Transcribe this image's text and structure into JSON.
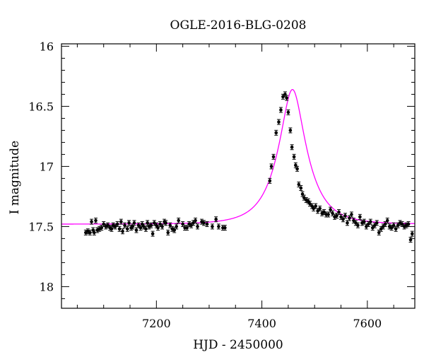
{
  "chart_data": {
    "type": "scatter",
    "title": "OGLE-2016-BLG-0208",
    "xlabel": "HJD - 2450000",
    "ylabel": "I magnitude",
    "xlim": [
      7020,
      7690
    ],
    "ylim": [
      18.18,
      15.98
    ],
    "y_inverted": true,
    "x_major_ticks": [
      7200,
      7400,
      7600
    ],
    "y_major_ticks": [
      16,
      16.5,
      17,
      17.5,
      18
    ],
    "y_tick_labels": [
      "16",
      "16.5",
      "17",
      "17.5",
      "18"
    ],
    "x_tick_labels": [
      "7200",
      "7400",
      "7600"
    ],
    "grid": false,
    "colors": {
      "model": "#ff00ff",
      "points": "#000000"
    },
    "series": [
      {
        "type": "scatter",
        "x": [
          7066,
          7070,
          7074,
          7077,
          7080,
          7082,
          7085,
          7088,
          7092,
          7096,
          7100,
          7104,
          7108,
          7112,
          7115,
          7118,
          7122,
          7126,
          7130,
          7133,
          7136,
          7140,
          7145,
          7148,
          7152,
          7155,
          7158,
          7162,
          7166,
          7170,
          7173,
          7176,
          7180,
          7183,
          7186,
          7190,
          7193,
          7196,
          7200,
          7203,
          7207,
          7211,
          7215,
          7218,
          7222,
          7226,
          7230,
          7234,
          7238,
          7242,
          7250,
          7254,
          7258,
          7262,
          7266,
          7270,
          7274,
          7278,
          7286,
          7290,
          7296,
          7306,
          7313,
          7318,
          7326,
          7330,
          7415,
          7418,
          7422,
          7427,
          7432,
          7436,
          7440,
          7444,
          7447,
          7450,
          7454,
          7457,
          7461,
          7464,
          7467,
          7470,
          7474,
          7477,
          7480,
          7484,
          7488,
          7491,
          7495,
          7498,
          7502,
          7506,
          7510,
          7514,
          7518,
          7522,
          7526,
          7530,
          7534,
          7538,
          7542,
          7546,
          7550,
          7554,
          7558,
          7562,
          7566,
          7570,
          7574,
          7578,
          7582,
          7586,
          7590,
          7594,
          7598,
          7602,
          7606,
          7610,
          7614,
          7618,
          7622,
          7626,
          7630,
          7634,
          7638,
          7642,
          7646,
          7650,
          7654,
          7658,
          7662,
          7666,
          7670,
          7674,
          7678,
          7682,
          7685
        ],
        "y": [
          17.55,
          17.54,
          17.55,
          17.46,
          17.53,
          17.55,
          17.45,
          17.53,
          17.52,
          17.51,
          17.48,
          17.5,
          17.49,
          17.51,
          17.52,
          17.49,
          17.5,
          17.48,
          17.52,
          17.46,
          17.54,
          17.49,
          17.52,
          17.47,
          17.51,
          17.5,
          17.47,
          17.53,
          17.49,
          17.51,
          17.48,
          17.5,
          17.52,
          17.47,
          17.5,
          17.49,
          17.56,
          17.47,
          17.49,
          17.51,
          17.48,
          17.5,
          17.46,
          17.47,
          17.55,
          17.49,
          17.52,
          17.53,
          17.5,
          17.45,
          17.48,
          17.51,
          17.51,
          17.48,
          17.49,
          17.47,
          17.45,
          17.5,
          17.46,
          17.47,
          17.48,
          17.5,
          17.44,
          17.5,
          17.51,
          17.51,
          17.12,
          17.0,
          16.92,
          16.72,
          16.63,
          16.53,
          16.42,
          16.4,
          16.43,
          16.55,
          16.7,
          16.84,
          16.92,
          16.99,
          17.02,
          17.15,
          17.18,
          17.23,
          17.26,
          17.28,
          17.29,
          17.31,
          17.33,
          17.35,
          17.33,
          17.37,
          17.35,
          17.39,
          17.38,
          17.4,
          17.4,
          17.36,
          17.39,
          17.42,
          17.41,
          17.38,
          17.42,
          17.44,
          17.41,
          17.47,
          17.43,
          17.4,
          17.45,
          17.47,
          17.49,
          17.42,
          17.47,
          17.46,
          17.5,
          17.48,
          17.46,
          17.51,
          17.49,
          17.47,
          17.55,
          17.52,
          17.5,
          17.48,
          17.45,
          17.5,
          17.51,
          17.49,
          17.52,
          17.49,
          17.47,
          17.48,
          17.5,
          17.49,
          17.48,
          17.61,
          17.56
        ]
      },
      {
        "type": "line",
        "name": "",
        "model": {
          "u0": 0.375,
          "t0": 7458,
          "tE": 52,
          "base_mag": 17.48
        }
      }
    ]
  }
}
